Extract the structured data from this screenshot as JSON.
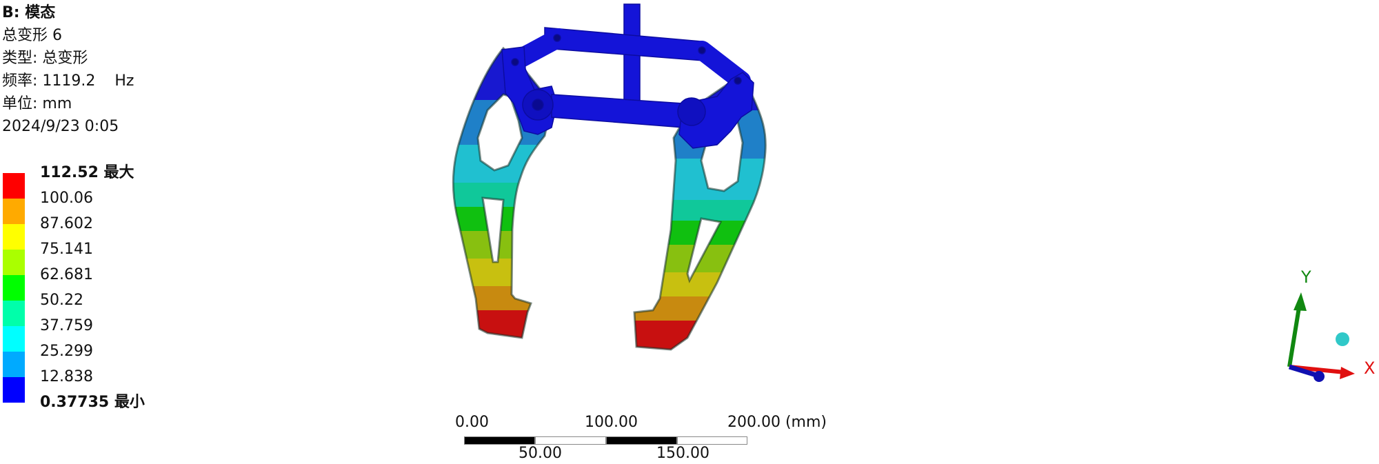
{
  "info": {
    "title": "B: 模态",
    "result_name": "总变形 6",
    "type": "类型: 总变形",
    "frequency": "频率: 1119.2    Hz",
    "unit": "单位: mm",
    "timestamp": "2024/9/23 0:05"
  },
  "legend": {
    "labels": [
      "112.52 最大",
      "100.06",
      "87.602",
      "75.141",
      "62.681",
      "50.22",
      "37.759",
      "25.299",
      "12.838",
      "0.37735 最小"
    ],
    "colors": [
      "#ff0000",
      "#ffaa00",
      "#ffff00",
      "#aaff00",
      "#00ff00",
      "#00ffaa",
      "#00ffff",
      "#00aaff",
      "#0000ff"
    ]
  },
  "scale_bar": {
    "top_labels": [
      "0.00",
      "100.00",
      "200.00 (mm)"
    ],
    "bottom_labels": [
      "50.00",
      "150.00"
    ]
  },
  "triad": {
    "x_label": "X",
    "y_label": "Y",
    "x_color": "#ff0000",
    "y_color": "#008800",
    "z_color": "#0000cc"
  }
}
